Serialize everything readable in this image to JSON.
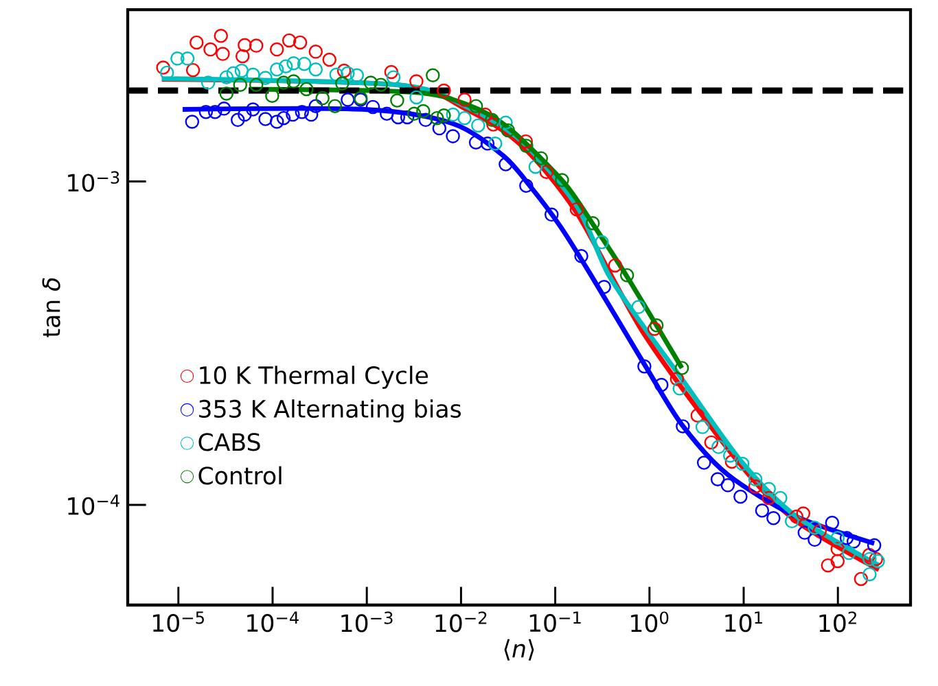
{
  "chart_data": {
    "type": "scatter",
    "xlabel": "⟨*n*⟩",
    "ylabel": "tan *δ*",
    "log": "xy",
    "legend": "center left",
    "xlim": [
      2.9e-06,
      590
    ],
    "ylim": [
      4.9e-05,
      0.0034
    ],
    "xticks": [
      {
        "value": 1e-05,
        "label": "10$^{−5}$"
      },
      {
        "value": 0.0001,
        "label": "10$^{−4}$"
      },
      {
        "value": 0.001,
        "label": "10$^{−3}$"
      },
      {
        "value": 0.01,
        "label": "10$^{−2}$"
      },
      {
        "value": 0.1,
        "label": "10$^{−1}$"
      },
      {
        "value": 1,
        "label": "10$^{0}$"
      },
      {
        "value": 10,
        "label": "10$^{1}$"
      },
      {
        "value": 100,
        "label": "10$^{2}$"
      }
    ],
    "yticks": [
      {
        "value": 0.0001,
        "label": "10$^{−4}$"
      },
      {
        "value": 0.001,
        "label": "10$^{−3}$"
      }
    ],
    "ref_lines": [
      {
        "axis": "y",
        "value": 0.00191,
        "color": "#000000",
        "line_style": "dashed"
      }
    ],
    "series": [
      {
        "name": "10 K Thermal Cycle",
        "marker": "circle",
        "color": "#ff0000",
        "x": [
          6.9e-06,
          1.43e-05,
          1.56e-05,
          2.19e-05,
          2.83e-05,
          2.96e-05,
          4.8e-05,
          5.06e-05,
          6.71e-05,
          0.000111,
          0.00015,
          0.000196,
          0.000287,
          0.000401,
          0.000574,
          0.00182,
          0.00336,
          0.00658,
          0.0109,
          0.018,
          0.022,
          0.0488,
          0.0807,
          0.169,
          0.432,
          1.13,
          1.96,
          3.24,
          4.53,
          7.5,
          13.3,
          18.5,
          36.3,
          42.9,
          64.2,
          78.5,
          99.3,
          99.3,
          176,
          215,
          254
        ],
        "values": [
          0.00225,
          0.00221,
          0.00269,
          0.00256,
          0.00282,
          0.00248,
          0.00244,
          0.00264,
          0.00263,
          0.00256,
          0.00273,
          0.00269,
          0.00252,
          0.00238,
          0.0022,
          0.00218,
          0.00204,
          0.00191,
          0.00179,
          0.00161,
          0.0015,
          0.00133,
          0.00107,
          0.00082,
          0.00055,
          0.00035,
          0.000245,
          0.000189,
          0.000156,
          0.000136,
          0.000114,
          0.000105,
          9.2e-05,
          9.4e-05,
          8.3e-05,
          6.5e-05,
          6.7e-05,
          7.3e-05,
          5.9e-05,
          7e-05,
          6.8e-05
        ]
      },
      {
        "name": "353 K Alternating bias",
        "marker": "circle",
        "color": "#0000ff",
        "x": [
          1.4e-05,
          1.96e-05,
          2.45e-05,
          3.05e-05,
          4.27e-05,
          5.06e-05,
          6.19e-05,
          8.4e-05,
          0.000111,
          0.000131,
          0.000164,
          0.000205,
          0.000257,
          0.000287,
          0.000627,
          0.00086,
          0.00116,
          0.00163,
          0.00215,
          0.00269,
          0.00421,
          0.00589,
          0.0082,
          0.0144,
          0.0191,
          0.0298,
          0.0492,
          0.0914,
          0.189,
          0.33,
          0.883,
          1.34,
          2.26,
          3.79,
          5.3,
          6.78,
          9.25,
          15.7,
          20.7,
          44.4,
          56.7,
          86.9,
          124,
          147,
          243
        ],
        "values": [
          0.00153,
          0.00164,
          0.00164,
          0.00168,
          0.00155,
          0.00161,
          0.00167,
          0.00156,
          0.00153,
          0.00157,
          0.00161,
          0.00164,
          0.00161,
          0.00171,
          0.00179,
          0.00179,
          0.0017,
          0.00162,
          0.00158,
          0.00158,
          0.00155,
          0.00146,
          0.00138,
          0.00132,
          0.00131,
          0.00113,
          0.00097,
          0.00079,
          0.000588,
          0.000472,
          0.000268,
          0.000235,
          0.000175,
          0.000135,
          0.00012,
          0.000115,
          0.000106,
          9.6e-05,
          9.1e-05,
          8.2e-05,
          7.8e-05,
          8.8e-05,
          7.9e-05,
          7.7e-05,
          7.5e-05
        ]
      },
      {
        "name": "CABS",
        "marker": "circle",
        "color": "#00bfbf",
        "x": [
          7.57e-06,
          9.77e-06,
          1.25e-05,
          2.07e-05,
          3.24e-05,
          3.83e-05,
          4.69e-05,
          6.19e-05,
          8.38e-05,
          0.000111,
          0.000138,
          0.000167,
          0.000217,
          0.000287,
          0.000475,
          0.000627,
          0.000785,
          0.00192,
          0.00336,
          0.00822,
          0.0109,
          0.0152,
          0.0231,
          0.0298,
          0.0617,
          0.312,
          0.764,
          2.09,
          3.66,
          5.41,
          7.17,
          9.7,
          13.3,
          18.5,
          24.5,
          32.5,
          56.7,
          99.3,
          131,
          217,
          217,
          266
        ],
        "values": [
          0.00217,
          0.0024,
          0.0024,
          0.00202,
          0.0021,
          0.00216,
          0.0022,
          0.00214,
          0.00209,
          0.00222,
          0.00227,
          0.00232,
          0.00231,
          0.00222,
          0.00214,
          0.00216,
          0.00213,
          0.0021,
          0.00182,
          0.00161,
          0.00157,
          0.00149,
          0.00131,
          0.00152,
          0.00111,
          0.000649,
          0.000409,
          0.000229,
          0.000174,
          0.000151,
          0.000142,
          0.000134,
          0.00012,
          0.000112,
          0.000105,
          8.9e-05,
          8.5e-05,
          7.9e-05,
          7.1e-05,
          6.8e-05,
          6.1e-05,
          6.7e-05
        ]
      },
      {
        "name": "Control",
        "marker": "circle",
        "color": "#008000",
        "x": [
          3.24e-05,
          4.53e-05,
          6.71e-05,
          9.9e-05,
          0.000131,
          0.000167,
          0.000229,
          0.000339,
          0.000459,
          0.000548,
          0.00086,
          0.0011,
          0.00141,
          0.0021,
          0.00318,
          0.00397,
          0.00502,
          0.00556,
          0.00658,
          0.0144,
          0.0213,
          0.0315,
          0.0492,
          0.0705,
          0.118,
          0.25,
          0.578,
          1.19,
          2.21
        ],
        "values": [
          0.00187,
          0.00199,
          0.00199,
          0.00184,
          0.00202,
          0.00204,
          0.00193,
          0.00181,
          0.00171,
          0.00201,
          0.00181,
          0.00202,
          0.00199,
          0.00178,
          0.00162,
          0.00165,
          0.00213,
          0.00157,
          0.0016,
          0.00171,
          0.00155,
          0.00144,
          0.00129,
          0.00118,
          0.00101,
          0.000743,
          0.000513,
          0.000359,
          0.000265
        ]
      },
      {
        "type": "line",
        "marker": "none",
        "color": "#ff0000",
        "x": [
          6.68e-06,
          0.00215,
          0.0115,
          0.0441,
          0.169,
          0.904,
          9.48,
          36.3,
          272
        ],
        "values": [
          0.00207,
          0.00199,
          0.00167,
          0.00129,
          0.0008,
          0.000333,
          0.000132,
          8.9e-05,
          6.3e-05
        ]
      },
      {
        "type": "line",
        "marker": "none",
        "color": "#0000ff",
        "x": [
          1.11e-05,
          0.00096,
          0.0082,
          0.0282,
          0.0552,
          0.113,
          0.236,
          0.904,
          2.21,
          6.78,
          36.3,
          243
        ],
        "values": [
          0.00167,
          0.00167,
          0.00151,
          0.0012,
          0.00096,
          0.000727,
          0.000517,
          0.000269,
          0.000177,
          0.000124,
          9.2e-05,
          7.6e-05
        ]
      },
      {
        "type": "line",
        "marker": "none",
        "color": "#00bfbf",
        "x": [
          6.68e-06,
          0.00215,
          0.0115,
          0.0441,
          0.169,
          0.365,
          0.904,
          2.21,
          9.48,
          36.3,
          272
        ],
        "values": [
          0.00208,
          0.00199,
          0.0017,
          0.00133,
          0.00084,
          0.000517,
          0.00035,
          0.000245,
          0.000136,
          9.2e-05,
          6.5e-05
        ]
      },
      {
        "type": "line",
        "marker": "none",
        "color": "#008000",
        "x": [
          5.68e-05,
          0.00301,
          0.0115,
          0.0315,
          0.121,
          0.25,
          0.578,
          2.21
        ],
        "values": [
          0.00193,
          0.00189,
          0.00173,
          0.00147,
          0.001,
          0.000739,
          0.000508,
          0.000265
        ]
      }
    ]
  }
}
